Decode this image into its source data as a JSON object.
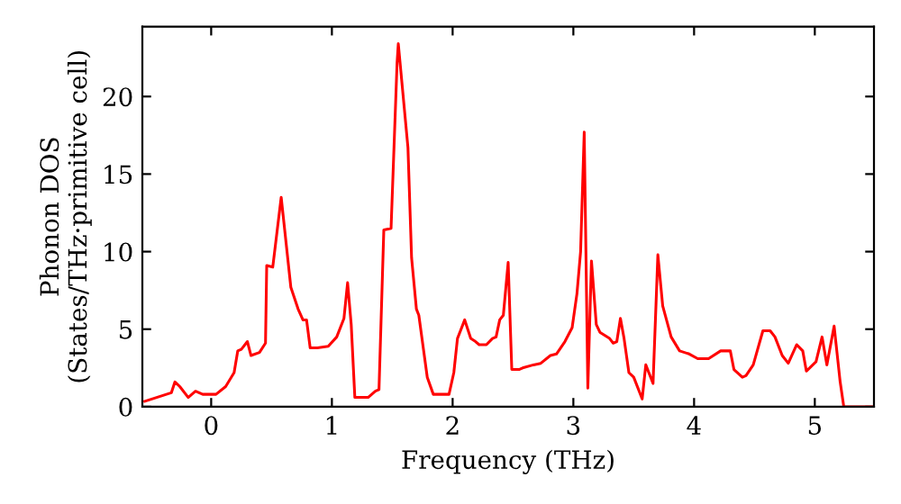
{
  "chart_data": {
    "type": "line",
    "xlabel": "Frequency (THz)",
    "ylabel": "Phonon DOS\n(States/THz·primitive cell)",
    "xlim": [
      -0.57,
      5.49
    ],
    "ylim": [
      0,
      24.5
    ],
    "xticks": [
      0,
      1,
      2,
      3,
      4,
      5
    ],
    "yticks": [
      0,
      5,
      10,
      15,
      20
    ],
    "grid": false,
    "legend": false,
    "marker": "none",
    "line_style": "solid",
    "series": [
      {
        "color": "#ff0000",
        "x": [
          -0.55,
          -0.33,
          -0.3,
          -0.26,
          -0.19,
          -0.13,
          -0.07,
          0.04,
          0.12,
          0.19,
          0.22,
          0.25,
          0.3,
          0.33,
          0.4,
          0.45,
          0.46,
          0.51,
          0.58,
          0.66,
          0.72,
          0.76,
          0.79,
          0.82,
          0.88,
          0.97,
          1.04,
          1.1,
          1.13,
          1.16,
          1.19,
          1.3,
          1.36,
          1.39,
          1.43,
          1.49,
          1.54,
          1.55,
          1.63,
          1.66,
          1.7,
          1.72,
          1.79,
          1.84,
          1.97,
          2.01,
          2.04,
          2.1,
          2.15,
          2.19,
          2.22,
          2.28,
          2.33,
          2.36,
          2.39,
          2.42,
          2.46,
          2.49,
          2.55,
          2.58,
          2.67,
          2.73,
          2.81,
          2.86,
          2.93,
          2.99,
          3.03,
          3.06,
          3.09,
          3.12,
          3.15,
          3.19,
          3.22,
          3.3,
          3.33,
          3.36,
          3.39,
          3.42,
          3.46,
          3.5,
          3.57,
          3.6,
          3.66,
          3.7,
          3.74,
          3.81,
          3.88,
          3.96,
          4.03,
          4.12,
          4.22,
          4.3,
          4.33,
          4.4,
          4.43,
          4.49,
          4.57,
          4.63,
          4.67,
          4.73,
          4.78,
          4.85,
          4.9,
          4.93,
          5.01,
          5.06,
          5.1,
          5.16,
          5.21,
          5.24,
          5.49
        ],
        "values": [
          0.35,
          0.9,
          1.6,
          1.3,
          0.6,
          1.0,
          0.8,
          0.8,
          1.3,
          2.2,
          3.6,
          3.7,
          4.2,
          3.3,
          3.5,
          4.1,
          9.1,
          9.0,
          13.5,
          7.7,
          6.3,
          5.6,
          5.6,
          3.8,
          3.8,
          3.9,
          4.5,
          5.7,
          8.0,
          5.3,
          0.6,
          0.6,
          1.0,
          1.1,
          11.4,
          11.5,
          22.2,
          23.4,
          16.7,
          9.6,
          6.3,
          5.9,
          1.9,
          0.8,
          0.8,
          2.2,
          4.4,
          5.6,
          4.4,
          4.2,
          4.0,
          4.0,
          4.4,
          4.5,
          5.6,
          5.9,
          9.3,
          2.4,
          2.4,
          2.5,
          2.7,
          2.8,
          3.3,
          3.4,
          4.2,
          5.1,
          7.3,
          10.0,
          17.7,
          1.2,
          9.4,
          5.3,
          4.8,
          4.4,
          4.1,
          4.2,
          5.7,
          4.4,
          2.2,
          1.9,
          0.5,
          2.7,
          1.5,
          9.8,
          6.5,
          4.5,
          3.6,
          3.4,
          3.1,
          3.1,
          3.6,
          3.6,
          2.4,
          1.9,
          2.0,
          2.7,
          4.9,
          4.9,
          4.5,
          3.3,
          2.8,
          4.0,
          3.6,
          2.3,
          2.9,
          4.5,
          2.7,
          5.2,
          1.6,
          0,
          0
        ]
      }
    ]
  }
}
